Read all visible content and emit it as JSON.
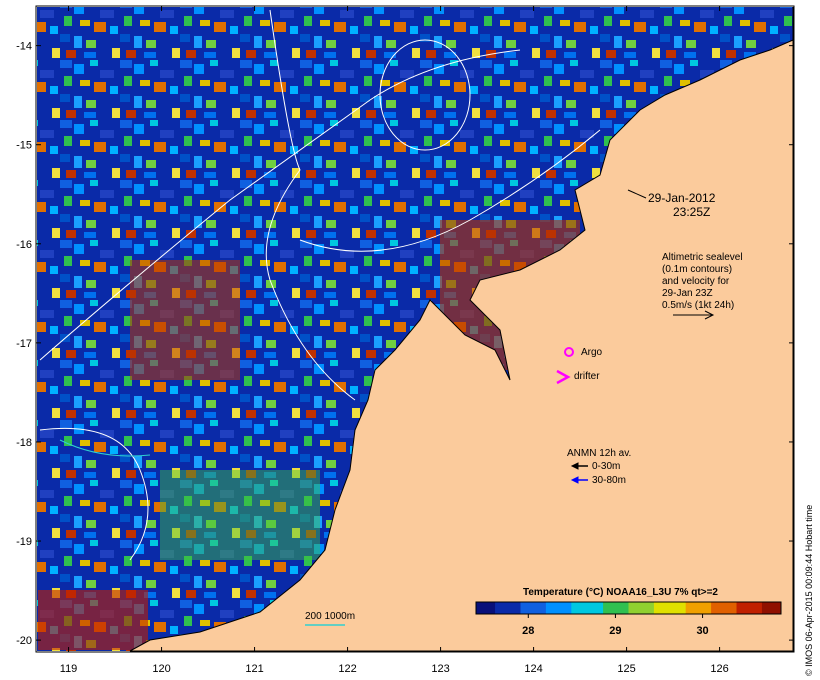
{
  "map": {
    "date_line1": "29-Jan-2012",
    "date_line2": "23:25Z",
    "altimetry_lines": [
      "Altimetric sealevel",
      "(0.1m contours)",
      "and velocity for",
      "29-Jan 23Z",
      "0.5m/s (1kt 24h)"
    ],
    "argo_label": "Argo",
    "drifter_label": "drifter",
    "anmn_title": "ANMN 12h av.",
    "anmn_shallow": "0-30m",
    "anmn_deep": "30-80m",
    "depth_label": "200  1000m",
    "colorbar_title": "Temperature (°C) NOAA16_L3U 7% qt>=2",
    "colorbar_ticks": [
      "28",
      "29",
      "30"
    ],
    "colorbar_range": [
      27.4,
      30.9
    ],
    "copyright": "© IMOS 06-Apr-2015 00:09:44 Hobart time",
    "lon_ticks": [
      "119",
      "120",
      "121",
      "122",
      "123",
      "124",
      "125",
      "126"
    ],
    "lat_ticks": [
      "-14",
      "-15",
      "-16",
      "-17",
      "-18",
      "-19",
      "-20"
    ],
    "lon_range": [
      118.65,
      126.8
    ],
    "lat_range": [
      -20.12,
      -13.6
    ],
    "colors": {
      "land": "#fbcb9c",
      "argo": "#ff00ff",
      "drifter": "#ff00ff",
      "anmn_shallow": "#000000",
      "anmn_deep": "#0000ff",
      "contour": "#ffffff",
      "depth_200": "#2fd0d0"
    }
  }
}
